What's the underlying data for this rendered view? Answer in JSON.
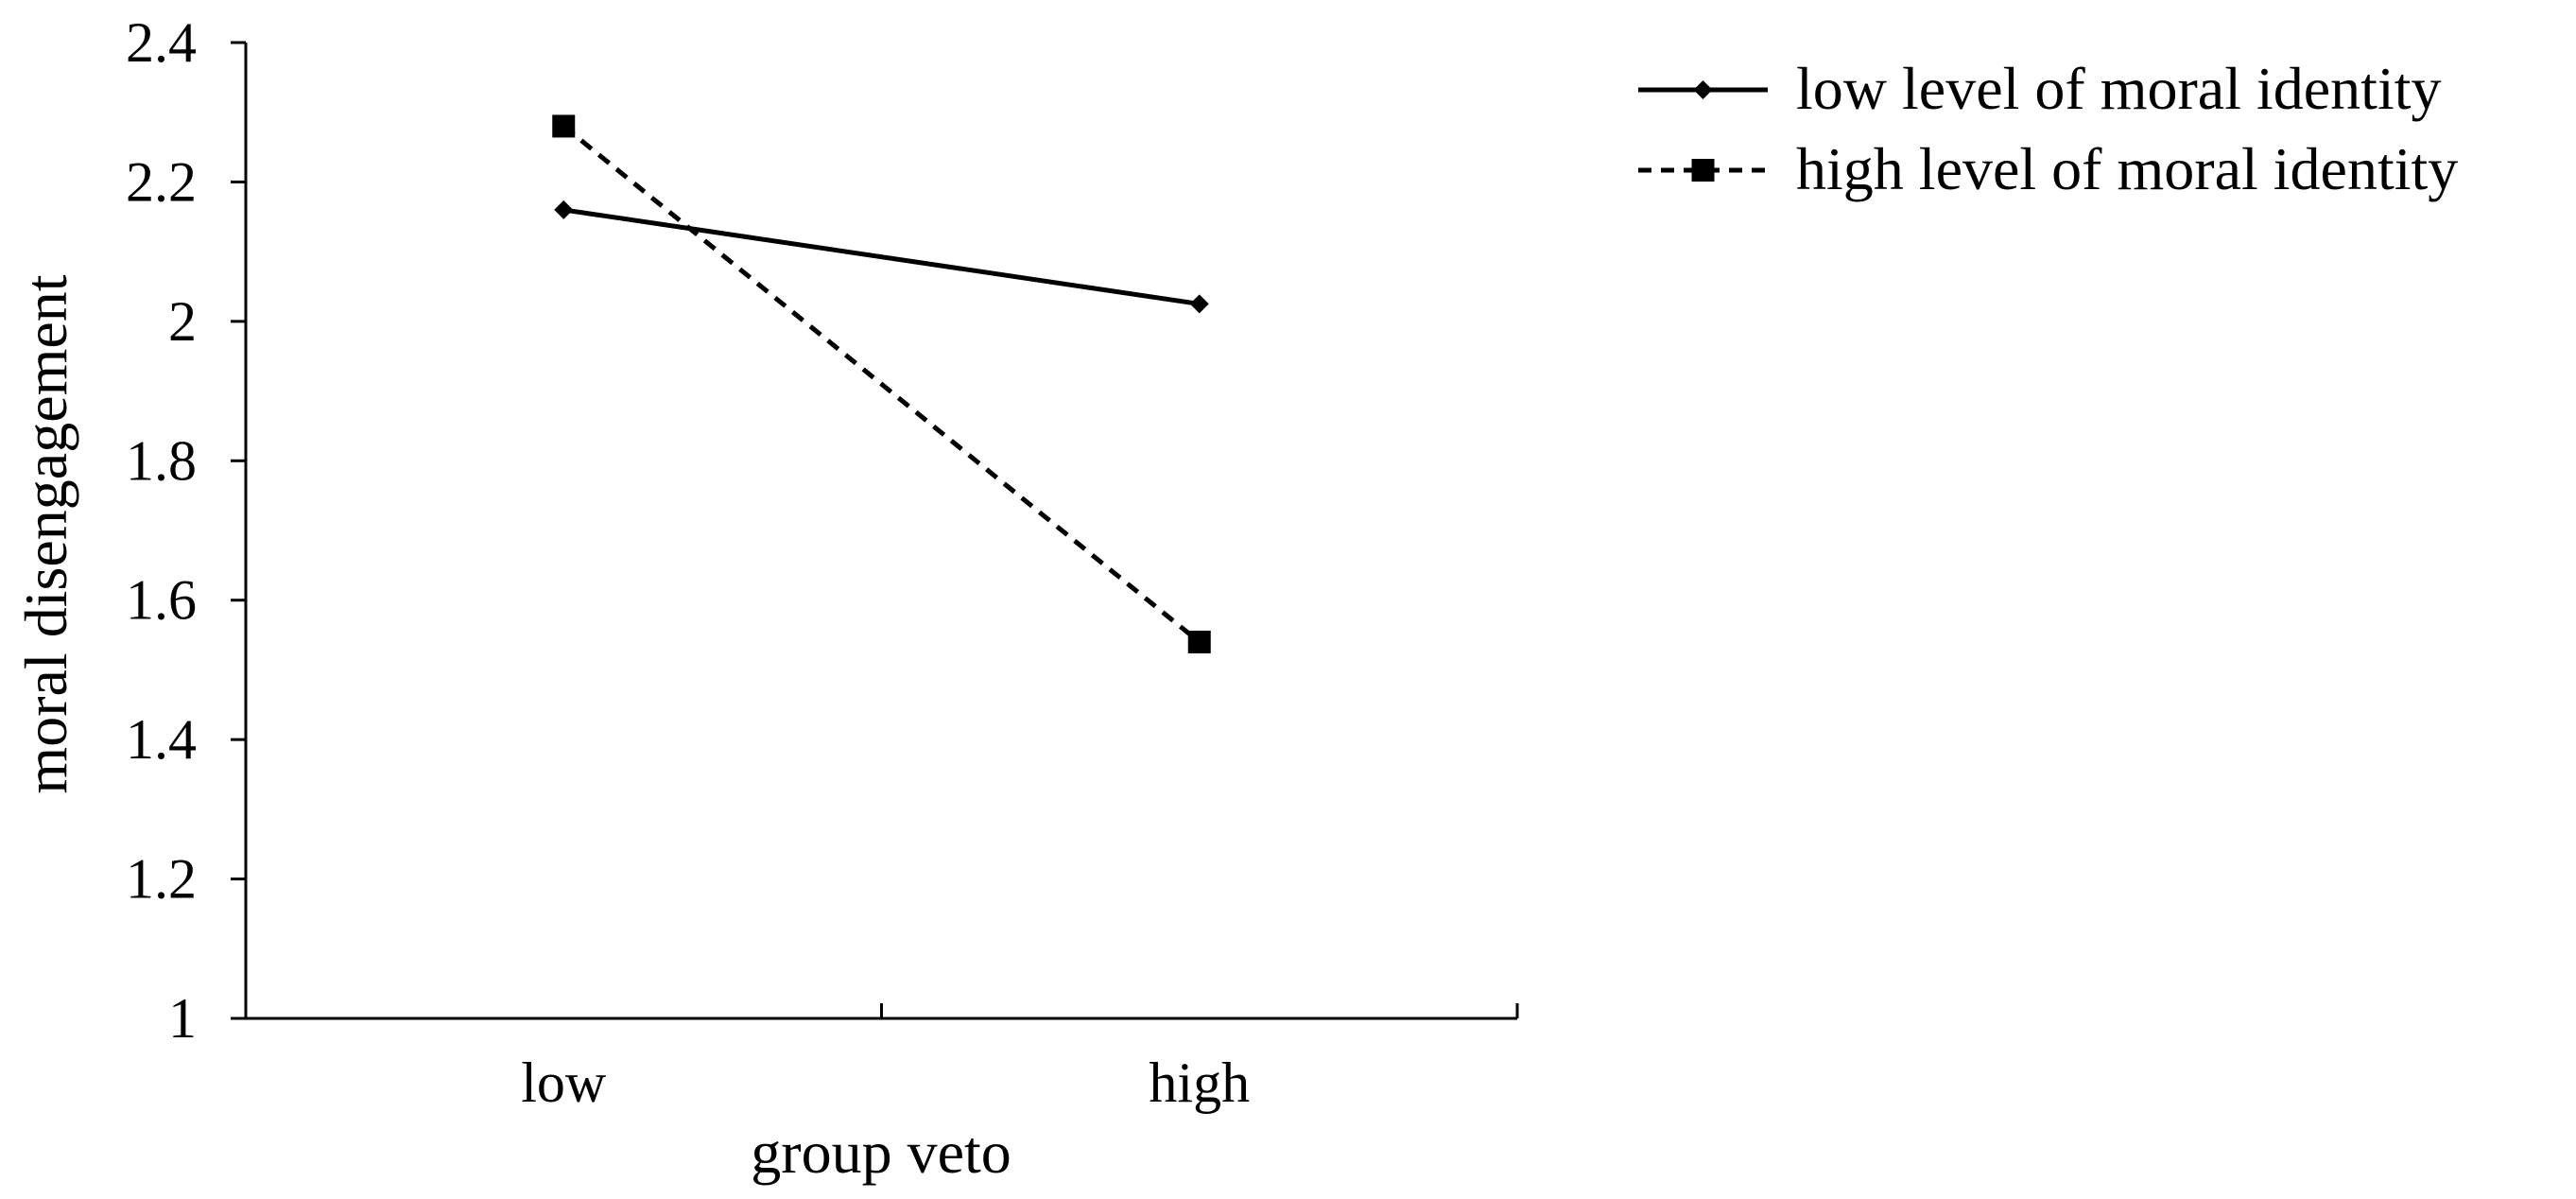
{
  "chart_data": {
    "type": "line",
    "title": "",
    "xlabel": "group veto",
    "ylabel": "moral disengagement",
    "categories": [
      "low",
      "high"
    ],
    "ylim": [
      1,
      2.4
    ],
    "yticks": [
      "1",
      "1.2",
      "1.4",
      "1.6",
      "1.8",
      "2",
      "2.2",
      "2.4"
    ],
    "grid": false,
    "legend_position": "top-right",
    "series": [
      {
        "name": "low level of moral identity",
        "values": [
          2.16,
          2.025
        ],
        "line_style": "solid",
        "marker": "diamond",
        "color": "#000000"
      },
      {
        "name": "high level of moral identity",
        "values": [
          2.28,
          1.54
        ],
        "line_style": "dashed",
        "marker": "square",
        "color": "#000000"
      }
    ]
  }
}
